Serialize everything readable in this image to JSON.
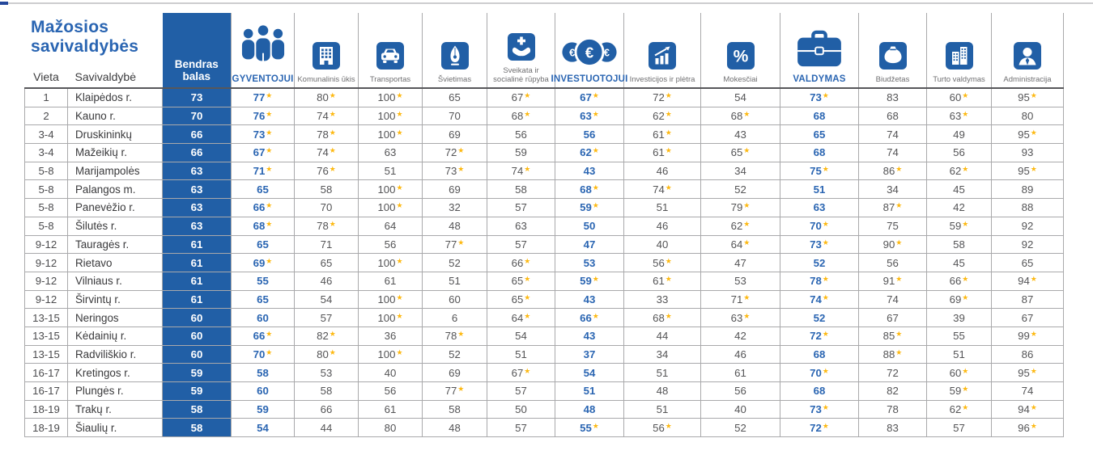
{
  "page": {
    "title_line1": "Mažosios",
    "title_line2": "savivaldybės"
  },
  "colors": {
    "brand_blue": "#215FA6",
    "text_blue": "#2A65B2",
    "value_gray": "#545456",
    "star_yellow": "#FDB913",
    "grid_gray": "#A9A9AB"
  },
  "table": {
    "star_marker": "★",
    "category_value_indexes": [
      0,
      5,
      8
    ],
    "header": {
      "vieta": "Vieta",
      "savivaldybe": "Savivaldybė",
      "bendras_line1": "Bendras",
      "bendras_line2": "balas"
    },
    "cols": [
      {
        "label": "GYVENTOJUI",
        "icon": "people-group-icon",
        "category": true
      },
      {
        "label": "Komunalinis ūkis",
        "icon": "building-icon",
        "category": false
      },
      {
        "label": "Transportas",
        "icon": "car-icon",
        "category": false
      },
      {
        "label": "Švietimas",
        "icon": "pen-nib-icon",
        "category": false
      },
      {
        "label": "Sveikata ir socialinė rūpyba",
        "icon": "health-hands-icon",
        "category": false
      },
      {
        "label": "INVESTUOTOJUI",
        "icon": "euro-coins-icon",
        "category": true
      },
      {
        "label": "Investicijos ir plėtra",
        "icon": "growth-chart-icon",
        "category": false
      },
      {
        "label": "Mokesčiai",
        "icon": "percent-icon",
        "category": false
      },
      {
        "label": "VALDYMAS",
        "icon": "briefcase-icon",
        "category": true
      },
      {
        "label": "Biudžetas",
        "icon": "money-bag-icon",
        "category": false
      },
      {
        "label": "Turto valdymas",
        "icon": "city-buildings-icon",
        "category": false
      },
      {
        "label": "Administracija",
        "icon": "person-icon",
        "category": false
      }
    ]
  },
  "chart_data": {
    "type": "table",
    "title": "Mažosios savivaldybės",
    "star_meaning_marker": "★",
    "columns": [
      "Vieta",
      "Savivaldybė",
      "Bendras balas",
      "GYVENTOJUI",
      "Komunalinis ūkis",
      "Transportas",
      "Švietimas",
      "Sveikata ir socialinė rūpyba",
      "INVESTUOTOJUI",
      "Investicijos ir plėtra",
      "Mokesčiai",
      "VALDYMAS",
      "Biudžetas",
      "Turto valdymas",
      "Administracija"
    ],
    "rows": [
      [
        "1",
        "Klaipėdos r.",
        "73",
        "77*",
        "80*",
        "100*",
        "65",
        "67*",
        "67*",
        "72*",
        "54",
        "73*",
        "83",
        "60*",
        "95*"
      ],
      [
        "2",
        "Kauno r.",
        "70",
        "76*",
        "74*",
        "100*",
        "70",
        "68*",
        "63*",
        "62*",
        "68*",
        "68",
        "68",
        "63*",
        "80"
      ],
      [
        "3-4",
        "Druskininkų",
        "66",
        "73*",
        "78*",
        "100*",
        "69",
        "56",
        "56",
        "61*",
        "43",
        "65",
        "74",
        "49",
        "95*"
      ],
      [
        "3-4",
        "Mažeikių r.",
        "66",
        "67*",
        "74*",
        "63",
        "72*",
        "59",
        "62*",
        "61*",
        "65*",
        "68",
        "74",
        "56",
        "93"
      ],
      [
        "5-8",
        "Marijampolės",
        "63",
        "71*",
        "76*",
        "51",
        "73*",
        "74*",
        "43",
        "46",
        "34",
        "75*",
        "86*",
        "62*",
        "95*"
      ],
      [
        "5-8",
        "Palangos m.",
        "63",
        "65",
        "58",
        "100*",
        "69",
        "58",
        "68*",
        "74*",
        "52",
        "51",
        "34",
        "45",
        "89"
      ],
      [
        "5-8",
        "Panevėžio r.",
        "63",
        "66*",
        "70",
        "100*",
        "32",
        "57",
        "59*",
        "51",
        "79*",
        "63",
        "87*",
        "42",
        "88"
      ],
      [
        "5-8",
        "Šilutės r.",
        "63",
        "68*",
        "78*",
        "64",
        "48",
        "63",
        "50",
        "46",
        "62*",
        "70*",
        "75",
        "59*",
        "92"
      ],
      [
        "9-12",
        "Tauragės r.",
        "61",
        "65",
        "71",
        "56",
        "77*",
        "57",
        "47",
        "40",
        "64*",
        "73*",
        "90*",
        "58",
        "92"
      ],
      [
        "9-12",
        "Rietavo",
        "61",
        "69*",
        "65",
        "100*",
        "52",
        "66*",
        "53",
        "56*",
        "47",
        "52",
        "56",
        "45",
        "65"
      ],
      [
        "9-12",
        "Vilniaus r.",
        "61",
        "55",
        "46",
        "61",
        "51",
        "65*",
        "59*",
        "61*",
        "53",
        "78*",
        "91*",
        "66*",
        "94*"
      ],
      [
        "9-12",
        "Širvintų r.",
        "61",
        "65",
        "54",
        "100*",
        "60",
        "65*",
        "43",
        "33",
        "71*",
        "74*",
        "74",
        "69*",
        "87"
      ],
      [
        "13-15",
        "Neringos",
        "60",
        "60",
        "57",
        "100*",
        "6",
        "64*",
        "66*",
        "68*",
        "63*",
        "52",
        "67",
        "39",
        "67"
      ],
      [
        "13-15",
        "Kėdainių r.",
        "60",
        "66*",
        "82*",
        "36",
        "78*",
        "54",
        "43",
        "44",
        "42",
        "72*",
        "85*",
        "55",
        "99*"
      ],
      [
        "13-15",
        "Radviliškio r.",
        "60",
        "70*",
        "80*",
        "100*",
        "52",
        "51",
        "37",
        "34",
        "46",
        "68",
        "88*",
        "51",
        "86"
      ],
      [
        "16-17",
        "Kretingos r.",
        "59",
        "58",
        "53",
        "40",
        "69",
        "67*",
        "54",
        "51",
        "61",
        "70*",
        "72",
        "60*",
        "95*"
      ],
      [
        "16-17",
        "Plungės r.",
        "59",
        "60",
        "58",
        "56",
        "77*",
        "57",
        "51",
        "48",
        "56",
        "68",
        "82",
        "59*",
        "74"
      ],
      [
        "18-19",
        "Trakų r.",
        "58",
        "59",
        "66",
        "61",
        "58",
        "50",
        "48",
        "51",
        "40",
        "73*",
        "78",
        "62*",
        "94*"
      ],
      [
        "18-19",
        "Šiaulių r.",
        "58",
        "54",
        "44",
        "80",
        "48",
        "57",
        "55*",
        "56*",
        "52",
        "72*",
        "83",
        "57",
        "96*"
      ]
    ]
  }
}
